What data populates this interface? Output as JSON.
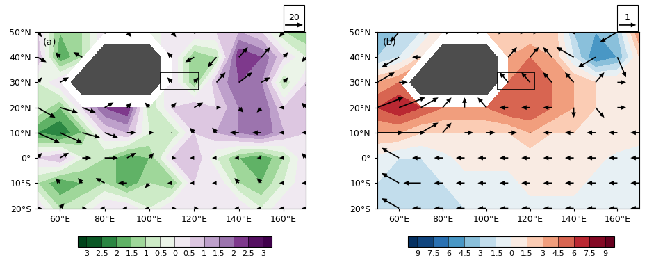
{
  "chart_data": [
    {
      "type": "contour",
      "title": "(a)",
      "x": [
        50,
        60,
        70,
        80,
        90,
        100,
        110,
        120,
        130,
        140,
        150,
        160,
        170
      ],
      "y": [
        50,
        40,
        30,
        20,
        10,
        0,
        -10,
        -20
      ],
      "cells": [
        [
          0.5,
          -1.5,
          -1,
          0.5,
          0.5,
          -0.5,
          0.5,
          0.5,
          0.5,
          1,
          0.5,
          -1,
          -1.5
        ],
        [
          1,
          -2,
          -1,
          null,
          null,
          null,
          0.5,
          -1.5,
          -1,
          2.5,
          2,
          0.5,
          -0.5
        ],
        [
          -0.5,
          0.5,
          null,
          null,
          null,
          null,
          0.5,
          -1.5,
          1,
          2,
          1.5,
          -1,
          0.5
        ],
        [
          -0.5,
          -1.5,
          0.5,
          2,
          2.5,
          -1,
          0.5,
          1,
          0.5,
          1.5,
          2,
          0.5,
          1
        ],
        [
          -2,
          -2.5,
          -1.5,
          0.5,
          1,
          -0.5,
          -1,
          0.5,
          1,
          1.5,
          2,
          1,
          0.5
        ],
        [
          0.5,
          1,
          -0.5,
          -1,
          -2,
          -1.5,
          0.5,
          1,
          -0.5,
          -1.5,
          -2,
          -1,
          0.5
        ],
        [
          -1,
          -2,
          -1.5,
          -1,
          -2,
          -1,
          -1.5,
          0.5,
          0.5,
          -1,
          -1.5,
          -0.5,
          0.5
        ],
        [
          0.5,
          -1,
          -0.5,
          0.5,
          0.5,
          -0.5,
          0.5,
          0.5,
          0.5,
          0.5,
          -0.5,
          0.5,
          0.5
        ]
      ],
      "colorbar": {
        "range": [
          -3,
          3
        ],
        "ticks": [
          -3,
          -2.5,
          -2,
          -1.5,
          -1,
          -0.5,
          0,
          0.5,
          1,
          1.5,
          2,
          2.5,
          3
        ]
      },
      "vectors": {
        "reference": 20,
        "u": [
          [
            5,
            -5,
            -5,
            5,
            5,
            -5,
            5,
            5,
            10,
            10,
            5,
            -5,
            5
          ],
          [
            10,
            -5,
            -10,
            null,
            null,
            null,
            -5,
            -10,
            -10,
            10,
            10,
            5,
            -5
          ],
          [
            5,
            10,
            null,
            null,
            null,
            null,
            -5,
            5,
            10,
            15,
            10,
            5,
            5
          ],
          [
            20,
            20,
            15,
            10,
            5,
            -5,
            5,
            10,
            5,
            5,
            -5,
            -5,
            -5
          ],
          [
            25,
            25,
            20,
            15,
            10,
            5,
            0,
            -5,
            -5,
            -10,
            -10,
            -5,
            -5
          ],
          [
            5,
            10,
            10,
            15,
            10,
            5,
            5,
            -5,
            -5,
            -5,
            -5,
            -5,
            -5
          ],
          [
            -5,
            -5,
            -5,
            -10,
            -10,
            -5,
            -5,
            -5,
            -5,
            -5,
            -5,
            -5,
            -5
          ],
          [
            5,
            5,
            5,
            -5,
            -5,
            -5,
            5,
            5,
            -5,
            -5,
            -5,
            -5,
            -5
          ]
        ],
        "v": [
          [
            -5,
            5,
            5,
            0,
            -5,
            5,
            -5,
            0,
            5,
            10,
            5,
            -5,
            5
          ],
          [
            -5,
            5,
            5,
            null,
            null,
            null,
            5,
            -5,
            -10,
            10,
            10,
            5,
            -5
          ],
          [
            5,
            5,
            null,
            null,
            null,
            null,
            5,
            5,
            10,
            10,
            5,
            5,
            -5
          ],
          [
            -10,
            -5,
            -5,
            5,
            5,
            5,
            5,
            5,
            0,
            -5,
            -5,
            0,
            5
          ],
          [
            -10,
            -10,
            -5,
            -5,
            0,
            0,
            0,
            5,
            5,
            0,
            0,
            0,
            0
          ],
          [
            5,
            5,
            0,
            0,
            5,
            5,
            0,
            0,
            0,
            0,
            0,
            0,
            5
          ],
          [
            5,
            5,
            5,
            5,
            0,
            -5,
            0,
            0,
            0,
            5,
            5,
            0,
            0
          ],
          [
            0,
            5,
            0,
            0,
            0,
            0,
            0,
            0,
            0,
            0,
            0,
            0,
            0
          ]
        ]
      },
      "box": {
        "x": [
          105,
          122
        ],
        "y": [
          27,
          34
        ]
      },
      "xlim": [
        50,
        170
      ],
      "ylim": [
        -20,
        50
      ],
      "xticks": [
        {
          "value": 60,
          "label": "60°E"
        },
        {
          "value": 80,
          "label": "80°E"
        },
        {
          "value": 100,
          "label": "100°E"
        },
        {
          "value": 120,
          "label": "120°E"
        },
        {
          "value": 140,
          "label": "140°E"
        },
        {
          "value": 160,
          "label": "160°E"
        }
      ],
      "yticks": [
        {
          "value": -20,
          "label": "20°S"
        },
        {
          "value": -10,
          "label": "10°S"
        },
        {
          "value": 0,
          "label": "0°"
        },
        {
          "value": 10,
          "label": "10°N"
        },
        {
          "value": 20,
          "label": "20°N"
        },
        {
          "value": 30,
          "label": "30°N"
        },
        {
          "value": 40,
          "label": "40°N"
        },
        {
          "value": 50,
          "label": "50°N"
        }
      ]
    },
    {
      "type": "contour",
      "title": "(b)",
      "x": [
        50,
        60,
        70,
        80,
        90,
        100,
        110,
        120,
        130,
        140,
        150,
        160,
        170
      ],
      "y": [
        50,
        40,
        30,
        20,
        10,
        0,
        -10,
        -20
      ],
      "cells": [
        [
          -4.5,
          -3,
          -1.5,
          1.5,
          3,
          1.5,
          1.5,
          1.5,
          3,
          -3,
          -4.5,
          -3,
          4.5
        ],
        [
          -3,
          -1.5,
          1.5,
          null,
          null,
          null,
          3,
          4.5,
          3,
          -1.5,
          -6,
          -4.5,
          1.5
        ],
        [
          3,
          4.5,
          null,
          null,
          null,
          null,
          4.5,
          6,
          4.5,
          3,
          1.5,
          1.5,
          1.5
        ],
        [
          6,
          7.5,
          6,
          4.5,
          4.5,
          4.5,
          6,
          6,
          4.5,
          3,
          1.5,
          1.5,
          1.5
        ],
        [
          3,
          3,
          1.5,
          1.5,
          1.5,
          1.5,
          1.5,
          3,
          1.5,
          1.5,
          1.5,
          1.5,
          0.5
        ],
        [
          -0.5,
          -1.5,
          -1.5,
          -0.5,
          0.5,
          0.5,
          0.5,
          0.5,
          0.5,
          0.5,
          0.5,
          -0.5,
          -0.5
        ],
        [
          -1.5,
          -1.5,
          -1.5,
          -1.5,
          -0.5,
          -0.5,
          -0.5,
          0.5,
          0.5,
          0.5,
          -0.5,
          -0.5,
          -0.5
        ],
        [
          -3,
          -1.5,
          -1.5,
          -1.5,
          -1.5,
          -0.5,
          -0.5,
          -0.5,
          -0.5,
          -0.5,
          -0.5,
          -1.5,
          -1.5
        ]
      ],
      "colorbar": {
        "range": [
          -9,
          9
        ],
        "ticks": [
          -9,
          -7.5,
          -6,
          -4.5,
          -3,
          -1.5,
          0,
          1.5,
          3,
          4.5,
          6,
          7.5,
          9
        ]
      },
      "vectors": {
        "reference": 1,
        "u": [
          [
            -1,
            -0.5,
            0.5,
            0.5,
            1,
            1,
            1,
            0.5,
            0.5,
            -1,
            -1.5,
            -1,
            1
          ],
          [
            -0.5,
            -1,
            -0.5,
            null,
            null,
            null,
            0.5,
            0.5,
            -0.5,
            -1,
            -1,
            0.5,
            1
          ],
          [
            1,
            0.5,
            null,
            null,
            null,
            null,
            -0.5,
            -0.5,
            -0.5,
            -0.5,
            0.5,
            0.5,
            0.5
          ],
          [
            1.5,
            1.5,
            1,
            0.5,
            0,
            -0.5,
            -0.5,
            -0.5,
            -0.5,
            0,
            0.5,
            0.5,
            0.5
          ],
          [
            1.5,
            1.5,
            1,
            0.5,
            0.5,
            0.5,
            0.5,
            0,
            -0.5,
            -0.5,
            -0.5,
            -0.5,
            -0.5
          ],
          [
            -1,
            -1,
            -0.5,
            -0.5,
            -0.5,
            -0.5,
            -0.5,
            -0.5,
            -0.5,
            -0.5,
            -0.5,
            -0.5,
            -0.5
          ],
          [
            -1,
            -1,
            -1,
            -0.5,
            -0.5,
            -0.5,
            -0.5,
            -0.5,
            -0.5,
            -0.5,
            -0.5,
            -0.5,
            -0.5
          ],
          [
            -1,
            -1,
            -0.5,
            -0.5,
            -0.5,
            -0.5,
            -0.5,
            -0.5,
            -0.5,
            -0.5,
            -0.5,
            -0.5,
            -0.5
          ]
        ],
        "v": [
          [
            -0.5,
            -0.5,
            0,
            0,
            0,
            0,
            0,
            0,
            0.5,
            1,
            0,
            -0.5,
            -0.5
          ],
          [
            -0.5,
            -0.5,
            0,
            null,
            null,
            null,
            0.5,
            0.5,
            0.5,
            0.5,
            -0.5,
            -1,
            -0.5
          ],
          [
            0.5,
            0,
            null,
            null,
            null,
            null,
            0.5,
            0.5,
            0.5,
            0.5,
            0.5,
            0,
            0
          ],
          [
            0.5,
            0.5,
            0.5,
            0.5,
            0.5,
            0.5,
            0,
            0,
            0,
            -0.5,
            -0.5,
            0,
            0
          ],
          [
            0,
            0,
            0.5,
            0.5,
            0,
            0,
            0,
            0,
            0,
            0,
            0,
            0,
            0
          ],
          [
            0.5,
            0.5,
            0,
            0,
            0,
            0,
            0,
            0,
            0,
            0,
            0,
            0,
            0
          ],
          [
            0.5,
            0.5,
            0,
            0,
            0,
            0,
            0,
            0,
            0,
            0,
            0,
            0,
            0
          ],
          [
            0.5,
            0.5,
            0,
            0,
            0,
            0,
            0,
            0,
            0,
            0,
            0,
            0,
            0
          ]
        ]
      },
      "box": {
        "x": [
          105,
          122
        ],
        "y": [
          27,
          34
        ]
      },
      "xlim": [
        50,
        170
      ],
      "ylim": [
        -20,
        50
      ],
      "xticks": [
        {
          "value": 60,
          "label": "60°E"
        },
        {
          "value": 80,
          "label": "80°E"
        },
        {
          "value": 100,
          "label": "100°E"
        },
        {
          "value": 120,
          "label": "120°E"
        },
        {
          "value": 140,
          "label": "140°E"
        },
        {
          "value": 160,
          "label": "160°E"
        }
      ],
      "yticks": [
        {
          "value": -20,
          "label": "20°S"
        },
        {
          "value": -10,
          "label": "10°S"
        },
        {
          "value": 0,
          "label": "0°"
        },
        {
          "value": 10,
          "label": "10°N"
        },
        {
          "value": 20,
          "label": "20°N"
        },
        {
          "value": 30,
          "label": "30°N"
        },
        {
          "value": 40,
          "label": "40°N"
        },
        {
          "value": 50,
          "label": "50°N"
        }
      ]
    }
  ]
}
